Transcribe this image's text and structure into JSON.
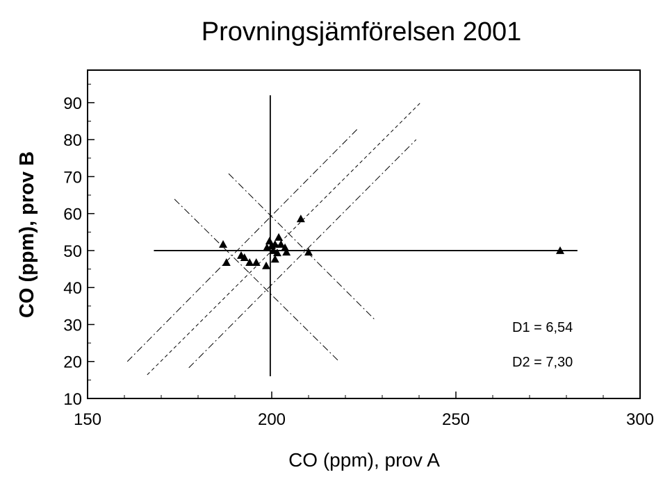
{
  "chart_data": {
    "type": "scatter",
    "title": "Provningsjämförelsen 2001",
    "x_label": "CO (ppm), prov A",
    "y_label": "CO (ppm), prov B",
    "x": [
      186.8,
      187.7,
      191.7,
      192.6,
      194.0,
      195.8,
      198.5,
      198.7,
      199.4,
      200.0,
      200.4,
      200.9,
      200.9,
      201.5,
      201.9,
      202.5,
      203.6,
      204.0,
      207.9,
      210.0,
      278.3
    ],
    "values": [
      51.7,
      46.8,
      48.7,
      48.1,
      46.8,
      46.8,
      45.9,
      50.8,
      52.6,
      51.3,
      50.0,
      51.7,
      47.7,
      49.4,
      53.6,
      51.7,
      50.8,
      49.6,
      58.6,
      49.6,
      50.0
    ],
    "color": "#000000",
    "xlim": [
      150,
      300
    ],
    "ylim": [
      10,
      98.8
    ],
    "xticks": [
      150,
      200,
      250,
      300
    ],
    "yticks": [
      10,
      20,
      30,
      40,
      50,
      60,
      70,
      80,
      90
    ],
    "xticks_minor": [
      160,
      170,
      180,
      190,
      210,
      220,
      230,
      240,
      260,
      270,
      280,
      290
    ],
    "yticks_minor": [
      15,
      25,
      35,
      45,
      55,
      65,
      75,
      85,
      95
    ],
    "reference_lines": [
      {
        "x": [
          199.6,
          199.6
        ],
        "y": [
          16,
          92
        ],
        "dash": "solid"
      },
      {
        "x": [
          168,
          283
        ],
        "y": [
          50,
          50
        ],
        "dash": "solid"
      },
      {
        "x": [
          166.2,
          240.4
        ],
        "y": [
          16.4,
          90.0
        ],
        "dash": "dash"
      },
      {
        "x": [
          160.8,
          223.6
        ],
        "y": [
          20.0,
          83.2
        ],
        "dash": "dashdot"
      },
      {
        "x": [
          177.5,
          239.2
        ],
        "y": [
          18.3,
          80.0
        ],
        "dash": "dashdot"
      },
      {
        "x": [
          188.3,
          228.3
        ],
        "y": [
          70.8,
          31.0
        ],
        "dash": "dashdot"
      },
      {
        "x": [
          173.6,
          218.3
        ],
        "y": [
          63.9,
          20.0
        ],
        "dash": "dashdot"
      }
    ],
    "annotations": [
      "D1 = 6,54",
      "D2 = 7,30"
    ]
  }
}
